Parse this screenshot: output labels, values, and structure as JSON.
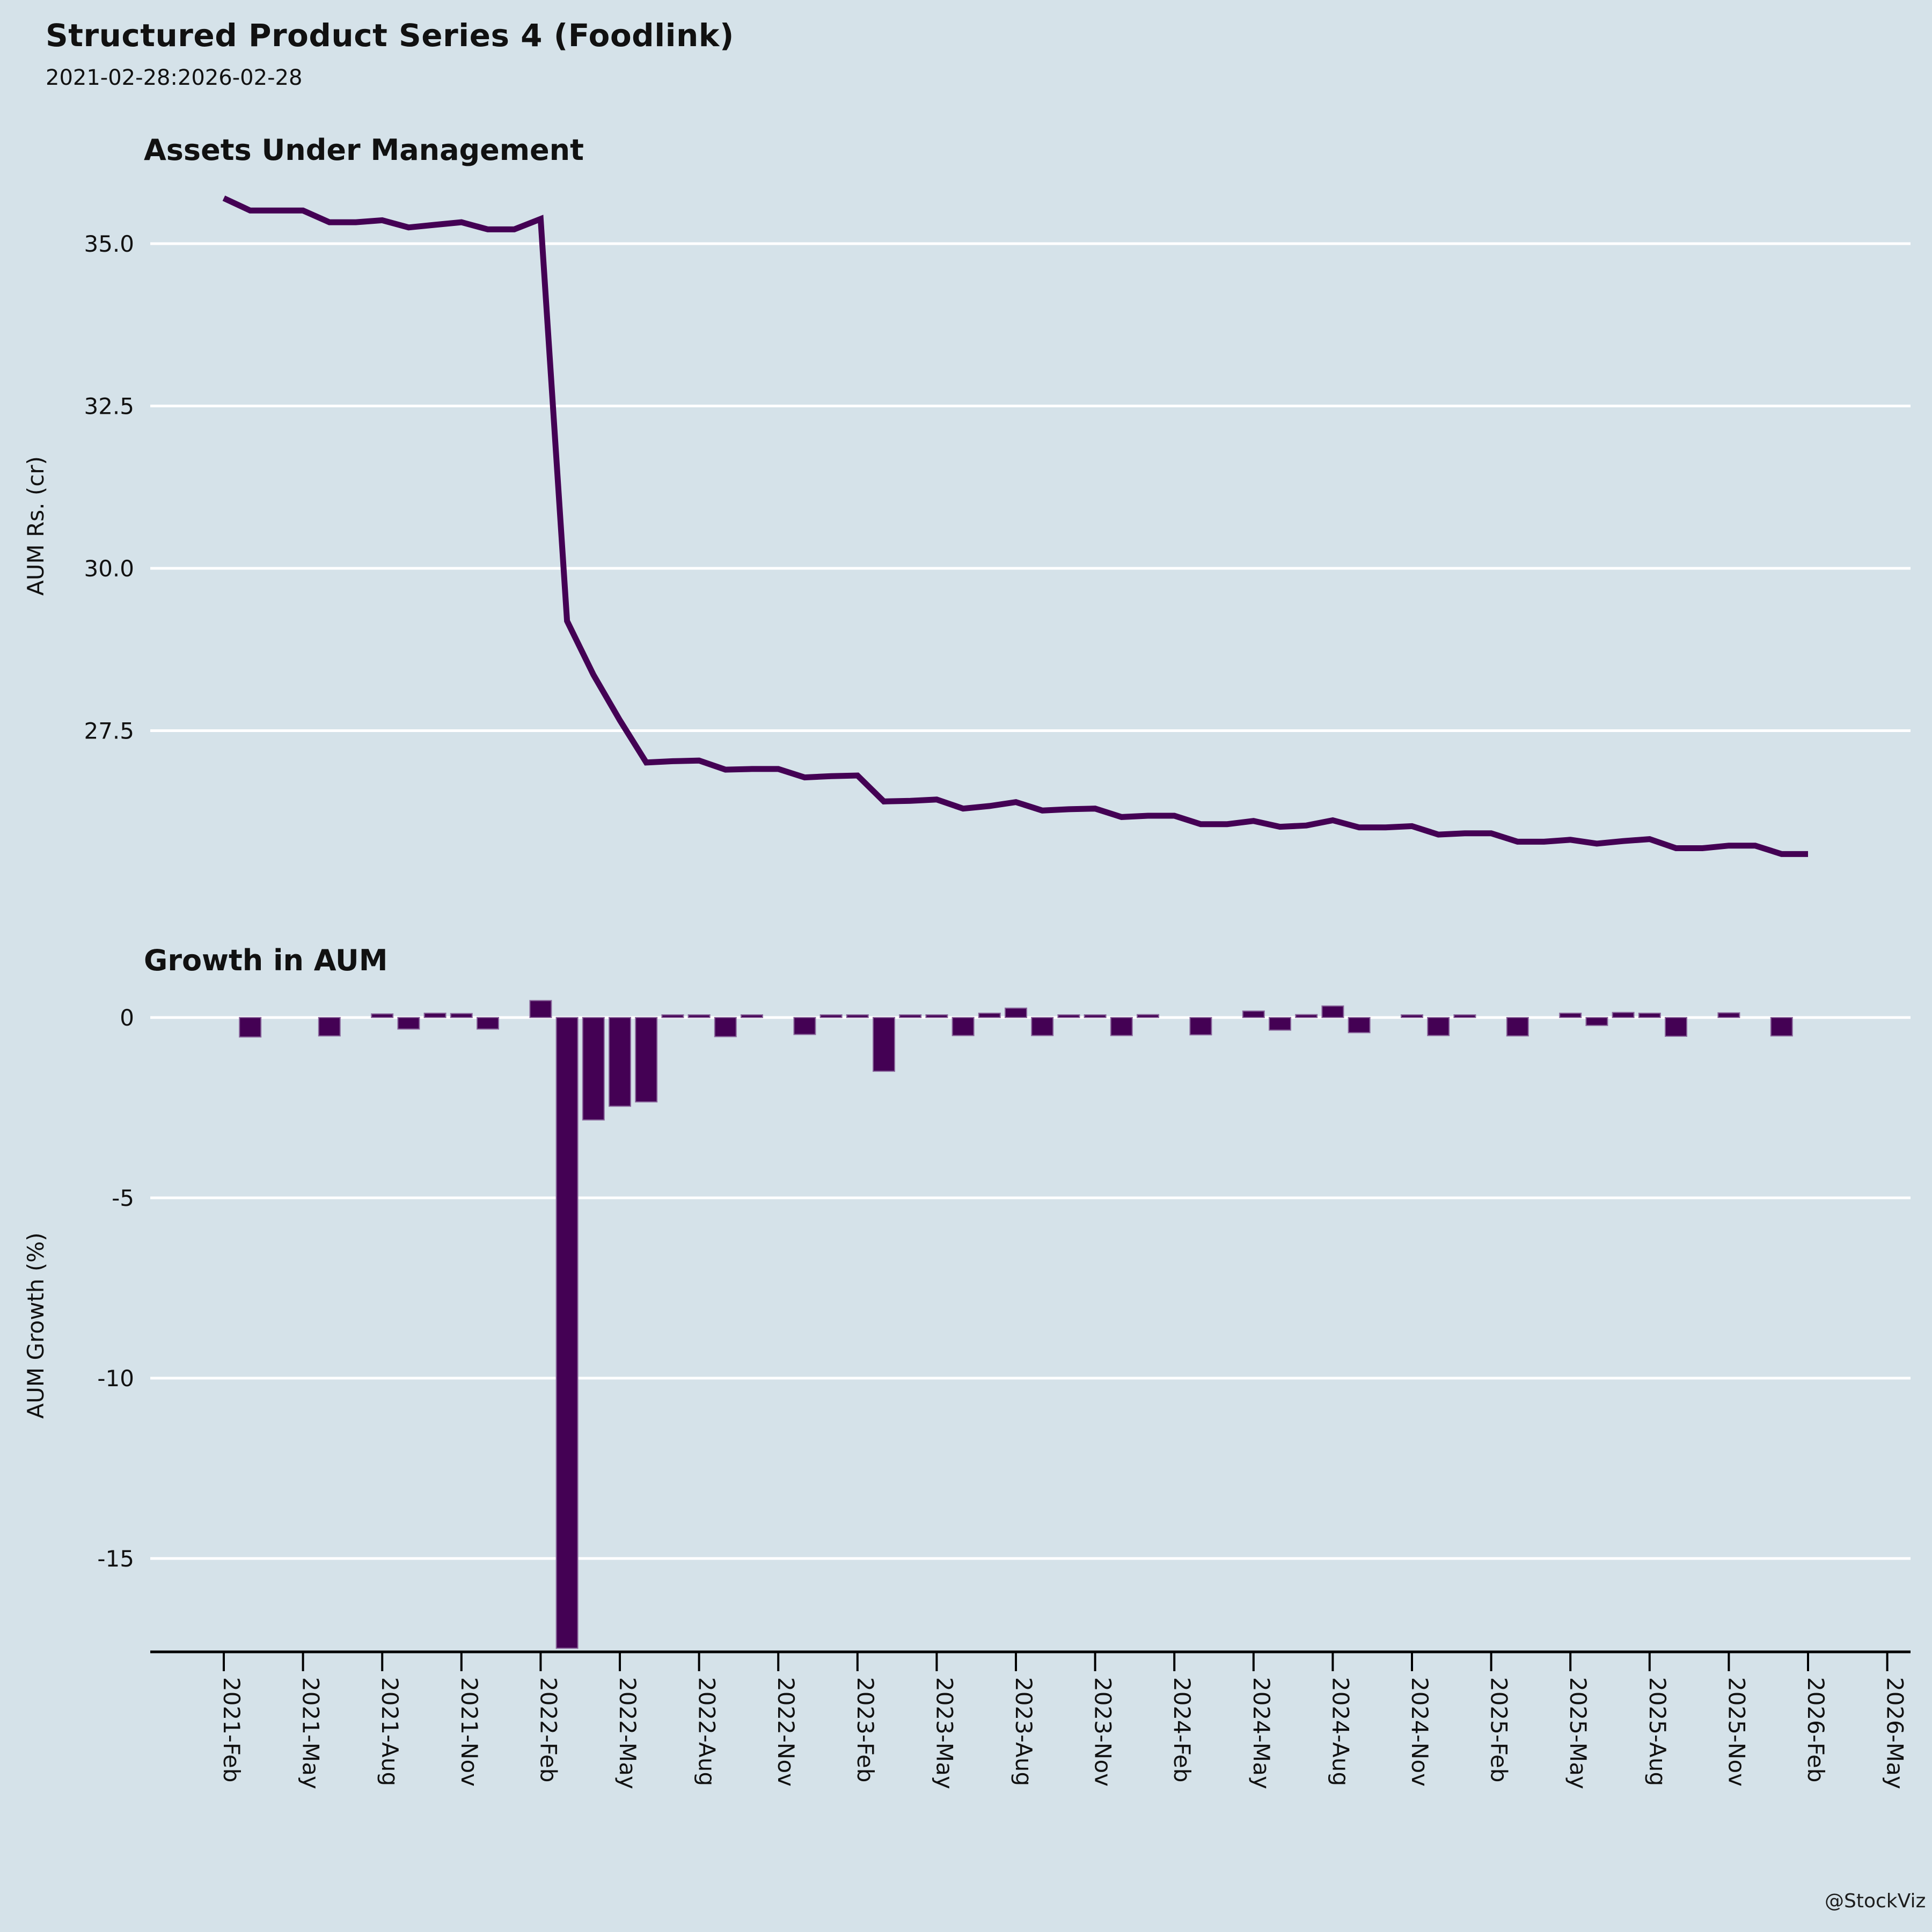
{
  "header": {
    "title": "Structured Product Series 4 (Foodlink)",
    "subtitle": "2021-02-28:2026-02-28"
  },
  "footer": {
    "watermark": "@StockViz"
  },
  "colors": {
    "background": "#d5e2e9",
    "series": "#440154",
    "bar_edge": "#8a679c",
    "gridline": "#ffffff",
    "axis": "#000000",
    "text": "#111111"
  },
  "chart_data": [
    {
      "type": "line",
      "title": "Assets Under Management",
      "ylabel": "AUM Rs. (cr)",
      "xlabel": "",
      "grid": "horizontal-white",
      "legend": "none",
      "yticks": [
        35.0,
        32.5,
        30.0,
        27.5
      ],
      "ylim": [
        25.2,
        36.1
      ],
      "x": [
        "2021-Feb",
        "2021-Mar",
        "2021-Apr",
        "2021-May",
        "2021-Jun",
        "2021-Jul",
        "2021-Aug",
        "2021-Sep",
        "2021-Oct",
        "2021-Nov",
        "2021-Dec",
        "2022-Jan",
        "2022-Feb",
        "2022-Mar",
        "2022-Apr",
        "2022-May",
        "2022-Jun",
        "2022-Jul",
        "2022-Aug",
        "2022-Sep",
        "2022-Oct",
        "2022-Nov",
        "2022-Dec",
        "2023-Jan",
        "2023-Feb",
        "2023-Mar",
        "2023-Apr",
        "2023-May",
        "2023-Jun",
        "2023-Jul",
        "2023-Aug",
        "2023-Sep",
        "2023-Oct",
        "2023-Nov",
        "2023-Dec",
        "2024-Jan",
        "2024-Feb",
        "2024-Mar",
        "2024-Apr",
        "2024-May",
        "2024-Jun",
        "2024-Jul",
        "2024-Aug",
        "2024-Sep",
        "2024-Oct",
        "2024-Nov",
        "2024-Dec",
        "2025-Jan",
        "2025-Feb",
        "2025-Mar",
        "2025-Apr",
        "2025-May",
        "2025-Jun",
        "2025-Jul",
        "2025-Aug",
        "2025-Sep",
        "2025-Oct",
        "2025-Nov",
        "2025-Dec",
        "2026-Jan",
        "2026-Feb"
      ],
      "values": [
        35.7,
        35.51,
        35.51,
        35.51,
        35.33,
        35.33,
        35.36,
        35.25,
        35.29,
        35.33,
        35.22,
        35.22,
        35.38,
        29.19,
        28.36,
        27.66,
        27.01,
        27.03,
        27.04,
        26.9,
        26.91,
        26.91,
        26.78,
        26.8,
        26.81,
        26.41,
        26.42,
        26.44,
        26.3,
        26.34,
        26.4,
        26.27,
        26.29,
        26.3,
        26.17,
        26.19,
        26.19,
        26.06,
        26.06,
        26.11,
        26.02,
        26.04,
        26.12,
        26.01,
        26.01,
        26.03,
        25.9,
        25.92,
        25.92,
        25.79,
        25.79,
        25.82,
        25.76,
        25.8,
        25.83,
        25.69,
        25.69,
        25.73,
        25.73,
        25.6,
        25.6
      ],
      "xtick_labels": [
        "2021-Feb",
        "2021-May",
        "2021-Aug",
        "2021-Nov",
        "2022-Feb",
        "2022-May",
        "2022-Aug",
        "2022-Nov",
        "2023-Feb",
        "2023-May",
        "2023-Aug",
        "2023-Nov",
        "2024-Feb",
        "2024-May",
        "2024-Aug",
        "2024-Nov",
        "2025-Feb",
        "2025-May",
        "2025-Aug",
        "2025-Nov",
        "2026-Feb",
        "2026-May"
      ]
    },
    {
      "type": "bar",
      "title": "Growth in AUM",
      "ylabel": "AUM Growth (%)",
      "xlabel": "",
      "grid": "horizontal-white",
      "legend": "none",
      "yticks": [
        0,
        -5,
        -10,
        -15
      ],
      "ylim": [
        -18.6,
        0.9
      ],
      "x": [
        "2021-Feb",
        "2021-Mar",
        "2021-Apr",
        "2021-May",
        "2021-Jun",
        "2021-Jul",
        "2021-Aug",
        "2021-Sep",
        "2021-Oct",
        "2021-Nov",
        "2021-Dec",
        "2022-Jan",
        "2022-Feb",
        "2022-Mar",
        "2022-Apr",
        "2022-May",
        "2022-Jun",
        "2022-Jul",
        "2022-Aug",
        "2022-Sep",
        "2022-Oct",
        "2022-Nov",
        "2022-Dec",
        "2023-Jan",
        "2023-Feb",
        "2023-Mar",
        "2023-Apr",
        "2023-May",
        "2023-Jun",
        "2023-Jul",
        "2023-Aug",
        "2023-Sep",
        "2023-Oct",
        "2023-Nov",
        "2023-Dec",
        "2024-Jan",
        "2024-Feb",
        "2024-Mar",
        "2024-Apr",
        "2024-May",
        "2024-Jun",
        "2024-Jul",
        "2024-Aug",
        "2024-Sep",
        "2024-Oct",
        "2024-Nov",
        "2024-Dec",
        "2025-Jan",
        "2025-Feb",
        "2025-Mar",
        "2025-Apr",
        "2025-May",
        "2025-Jun",
        "2025-Jul",
        "2025-Aug",
        "2025-Sep",
        "2025-Oct",
        "2025-Nov",
        "2025-Dec",
        "2026-Jan",
        "2026-Feb"
      ],
      "values": [
        null,
        -0.54,
        0.0,
        0.0,
        -0.51,
        0.0,
        0.1,
        -0.32,
        0.12,
        0.11,
        -0.32,
        0.0,
        0.47,
        -17.49,
        -2.84,
        -2.46,
        -2.34,
        0.05,
        0.05,
        -0.53,
        0.05,
        0.0,
        -0.47,
        0.05,
        0.05,
        -1.49,
        0.05,
        0.05,
        -0.5,
        0.12,
        0.26,
        -0.5,
        0.05,
        0.05,
        -0.5,
        0.08,
        0.0,
        -0.48,
        0.0,
        0.18,
        -0.35,
        0.08,
        0.32,
        -0.42,
        0.0,
        0.07,
        -0.5,
        0.07,
        0.0,
        -0.51,
        0.0,
        0.12,
        -0.22,
        0.14,
        0.12,
        -0.52,
        0.0,
        0.13,
        0.0,
        -0.51,
        0.0
      ],
      "xtick_labels": [
        "2021-Feb",
        "2021-May",
        "2021-Aug",
        "2021-Nov",
        "2022-Feb",
        "2022-May",
        "2022-Aug",
        "2022-Nov",
        "2023-Feb",
        "2023-May",
        "2023-Aug",
        "2023-Nov",
        "2024-Feb",
        "2024-May",
        "2024-Aug",
        "2024-Nov",
        "2025-Feb",
        "2025-May",
        "2025-Aug",
        "2025-Nov",
        "2026-Feb",
        "2026-May"
      ]
    }
  ]
}
